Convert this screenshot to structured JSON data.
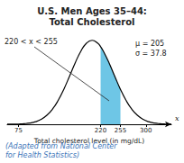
{
  "chart_data": {
    "type": "line",
    "title": [
      "U.S. Men Ages 35–44:",
      "Total Cholesterol"
    ],
    "x_label": "Total cholesterol level (in mg/dL)",
    "x": [
      55,
      65,
      75,
      85,
      95,
      105,
      115,
      125,
      135,
      145,
      155,
      165,
      175,
      185,
      195,
      205,
      215,
      220,
      225,
      235,
      245,
      255,
      265,
      275,
      285,
      295,
      305,
      315,
      325,
      335,
      345
    ],
    "values": [
      4.02e-06,
      1.108e-05,
      2.85e-05,
      6.83e-05,
      0.000153,
      0.000319,
      0.00062,
      0.001125,
      0.0019,
      0.002994,
      0.0044,
      0.006028,
      0.007702,
      0.009176,
      0.010191,
      0.010554,
      0.010191,
      0.009755,
      0.009176,
      0.007702,
      0.006028,
      0.0044,
      0.002994,
      0.0019,
      0.001125,
      0.00062,
      0.000319,
      0.000153,
      6.83e-05,
      2.85e-05,
      1.108e-05
    ],
    "color": "#000000",
    "shaded": {
      "from": 220,
      "to": 255,
      "color": "#6ec6e6"
    },
    "xlim": [
      55,
      345
    ],
    "xticks": [
      75,
      220,
      255,
      300
    ],
    "ylim": [
      0,
      0.012
    ],
    "tick_labels": "x",
    "grid": false,
    "annotation": "220 < x < 255",
    "mu_label": "μ = 205",
    "sigma_label": "σ = 37.8",
    "variable": "x",
    "source": [
      "(Adapted from National Center",
      "for Health Statistics)"
    ]
  }
}
